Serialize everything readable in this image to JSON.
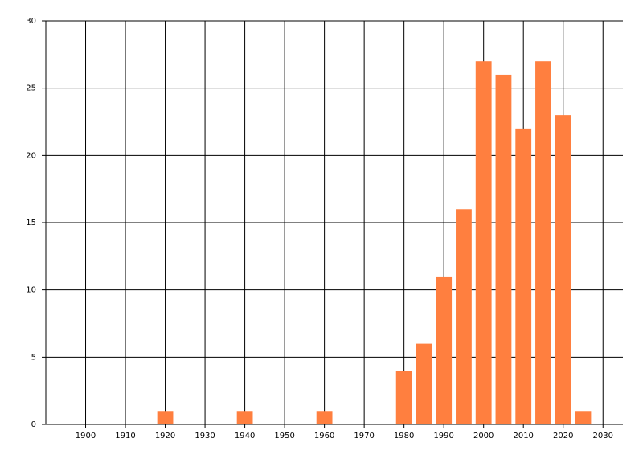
{
  "chart_data": {
    "type": "bar",
    "x": [
      1920,
      1940,
      1960,
      1980,
      1985,
      1990,
      1995,
      2000,
      2005,
      2010,
      2015,
      2020,
      2025
    ],
    "values": [
      1,
      1,
      1,
      4,
      6,
      11,
      16,
      27,
      26,
      22,
      27,
      23,
      1
    ],
    "color": "#ff7f3f",
    "xlim": [
      1890,
      2035
    ],
    "xticks": [
      1900,
      1910,
      1920,
      1930,
      1940,
      1950,
      1960,
      1970,
      1980,
      1990,
      2000,
      2010,
      2020,
      2030
    ],
    "ylim": [
      0,
      30
    ],
    "yticks": [
      0,
      5,
      10,
      15,
      20,
      25,
      30
    ],
    "grid": true
  }
}
